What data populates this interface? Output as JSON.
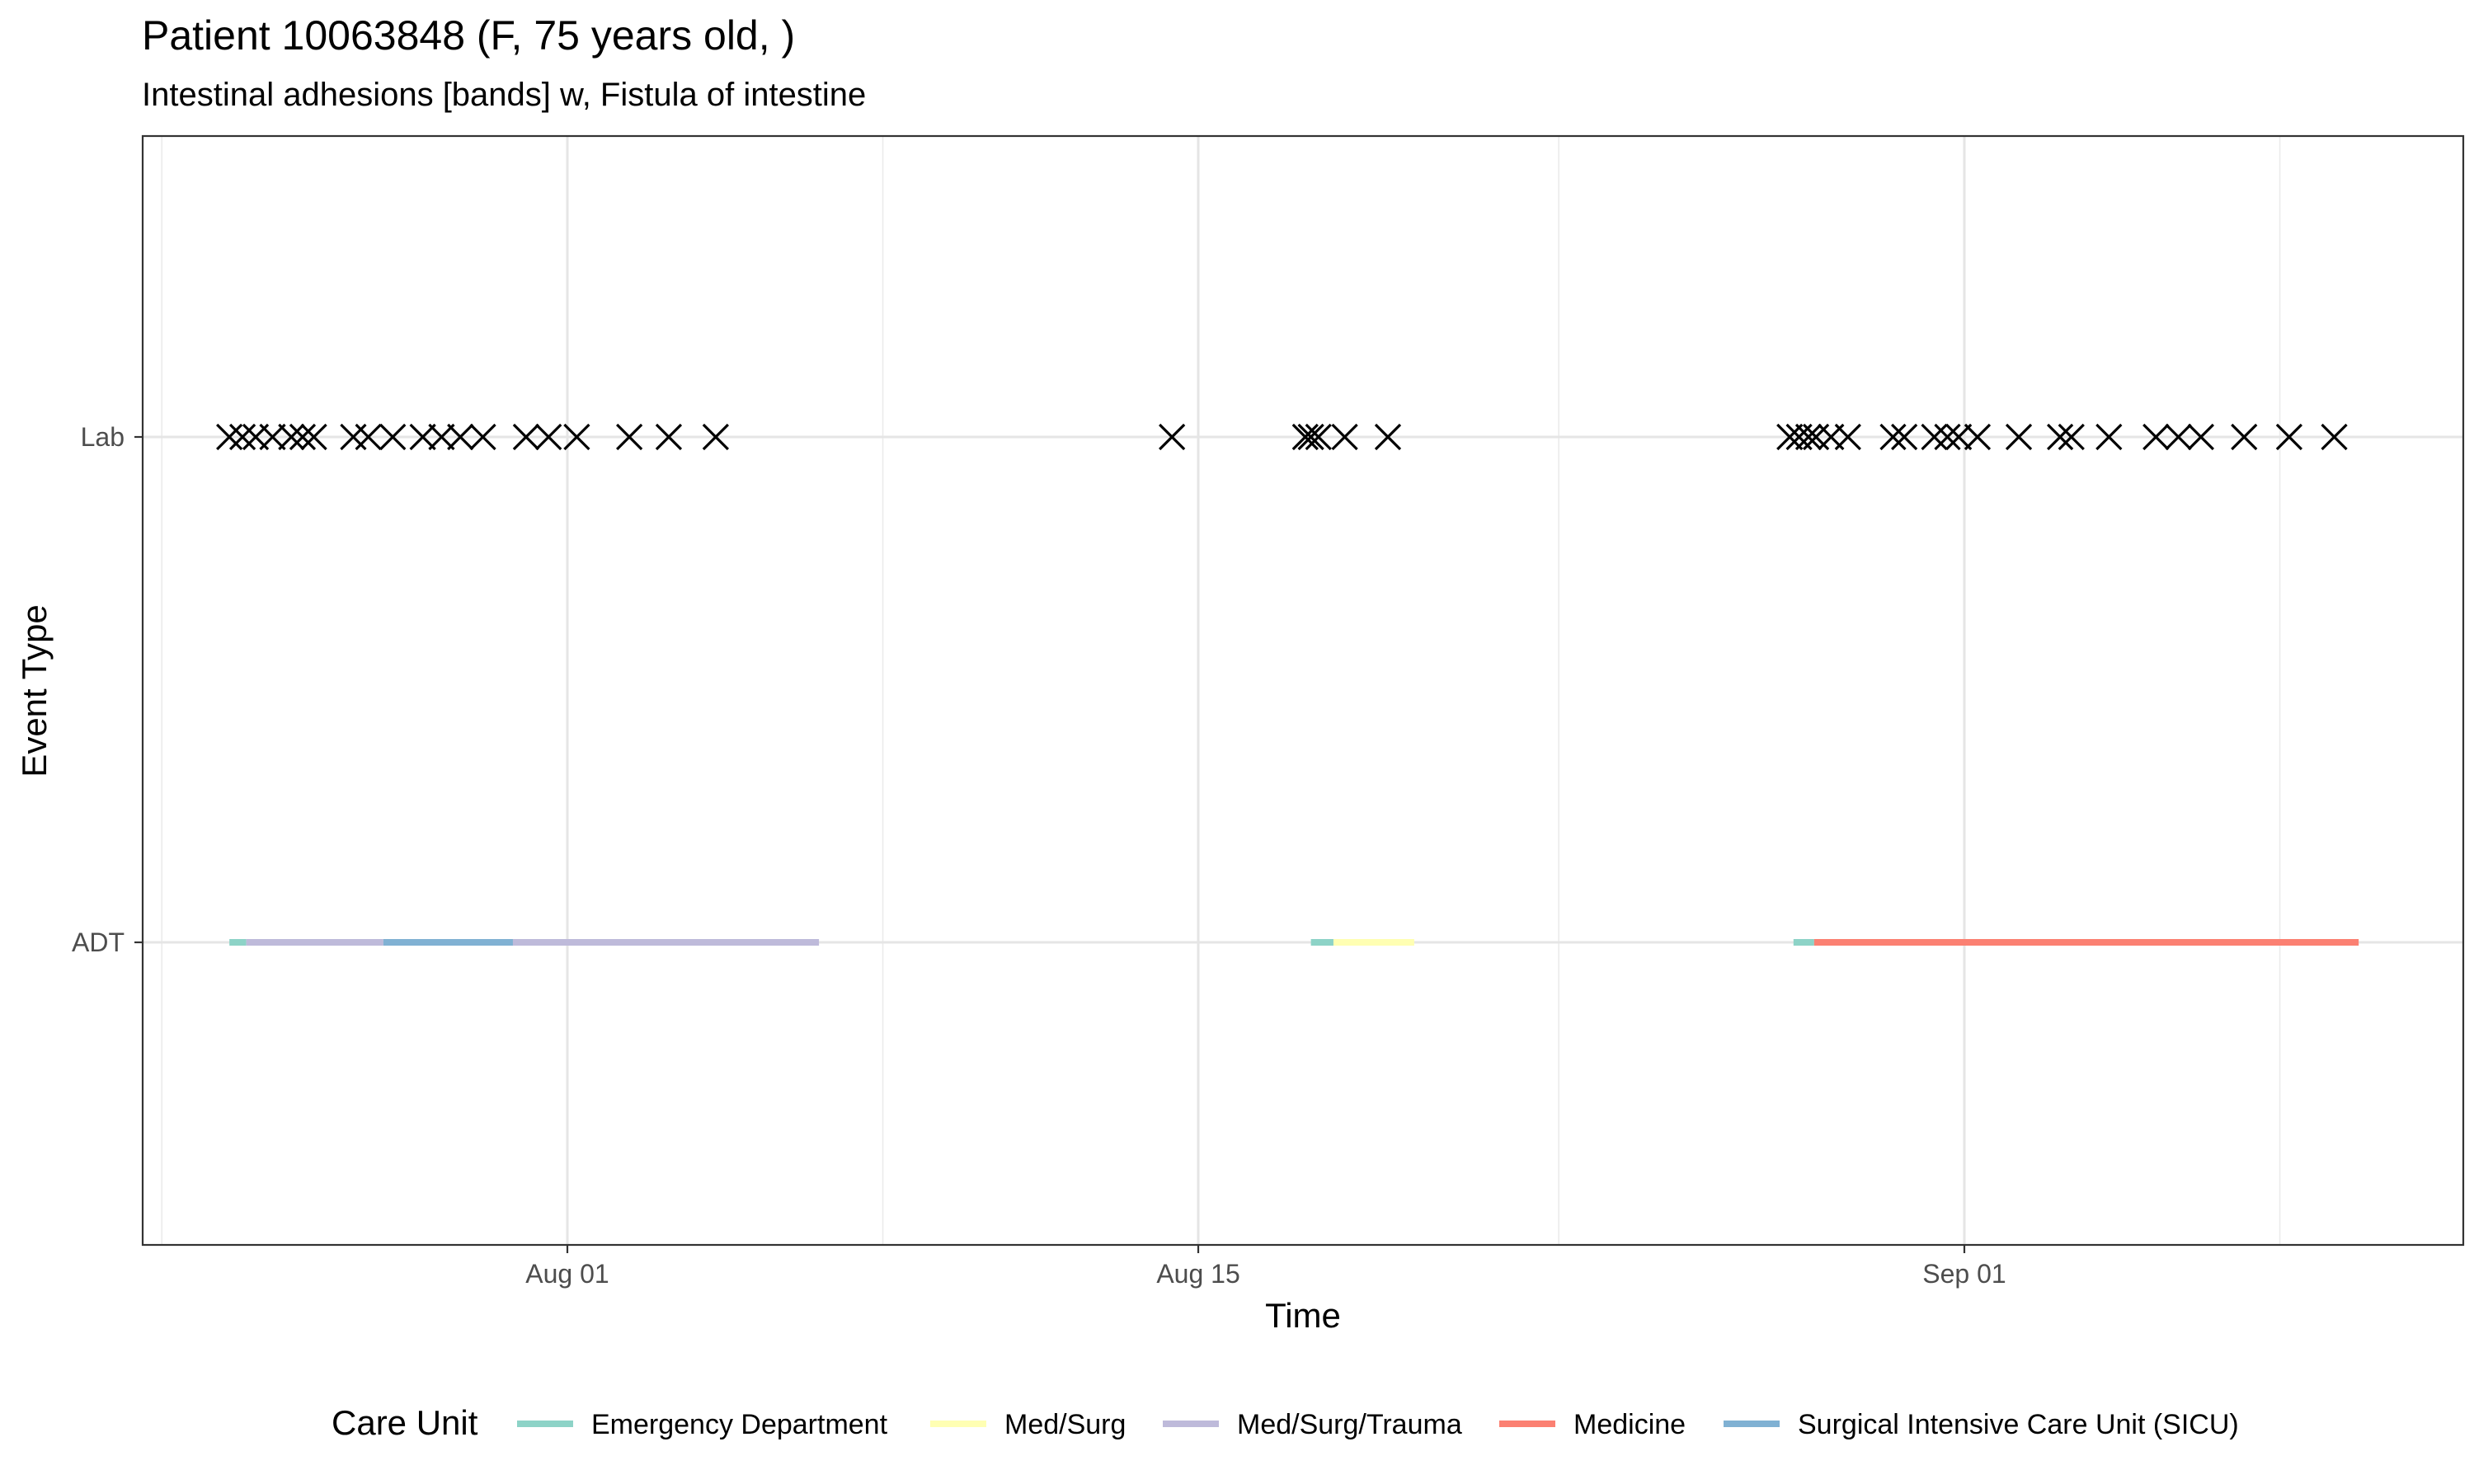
{
  "chart_data": {
    "type": "timeline",
    "title": "Patient 10063848 (F, 75 years old, )",
    "subtitle": "Intestinal adhesions [bands] w, Fistula of intestine",
    "xlabel": "Time",
    "ylabel": "Event Type",
    "x_axis": {
      "type": "date",
      "range": [
        "2024-07-18",
        "2024-09-13"
      ],
      "ticks": [
        {
          "value": "2024-08-01",
          "label": "Aug 01"
        },
        {
          "value": "2024-08-15",
          "label": "Aug 15"
        },
        {
          "value": "2024-09-01",
          "label": "Sep 01"
        }
      ],
      "minor_gridlines": [
        "2024-07-23",
        "2024-08-08",
        "2024-08-23",
        "2024-09-08"
      ]
    },
    "categories": [
      "ADT",
      "Lab"
    ],
    "grid": true,
    "legend": {
      "title": "Care Unit",
      "position": "bottom",
      "items": [
        {
          "label": "Emergency Department",
          "color": "#8DD3C7"
        },
        {
          "label": "Med/Surg",
          "color": "#FFFFB3"
        },
        {
          "label": "Med/Surg/Trauma",
          "color": "#BEBADA"
        },
        {
          "label": "Medicine",
          "color": "#FB8072"
        },
        {
          "label": "Surgical Intensive Care Unit (SICU)",
          "color": "#80B1D3"
        }
      ]
    },
    "adt_segments": [
      {
        "unit": "Emergency Department",
        "start": "2024-07-24T12:00",
        "end": "2024-07-24T21:00"
      },
      {
        "unit": "Med/Surg/Trauma",
        "start": "2024-07-24T21:00",
        "end": "2024-07-27T22:00"
      },
      {
        "unit": "Surgical Intensive Care Unit (SICU)",
        "start": "2024-07-27T22:00",
        "end": "2024-07-30T19:00"
      },
      {
        "unit": "Med/Surg/Trauma",
        "start": "2024-07-30T19:00",
        "end": "2024-08-06T14:00"
      },
      {
        "unit": "Emergency Department",
        "start": "2024-08-17T12:00",
        "end": "2024-08-18T00:00"
      },
      {
        "unit": "Med/Surg",
        "start": "2024-08-18T00:00",
        "end": "2024-08-19T19:00"
      },
      {
        "unit": "Emergency Department",
        "start": "2024-08-28T05:00",
        "end": "2024-08-28T16:00"
      },
      {
        "unit": "Medicine",
        "start": "2024-08-28T16:00",
        "end": "2024-09-09T18:00"
      }
    ],
    "lab_events": [
      "2024-07-24T12:00",
      "2024-07-24T19:00",
      "2024-07-25T02:00",
      "2024-07-25T11:00",
      "2024-07-25T21:00",
      "2024-07-26T03:00",
      "2024-07-26T09:00",
      "2024-07-27T06:00",
      "2024-07-27T14:00",
      "2024-07-28T03:00",
      "2024-07-28T19:00",
      "2024-07-29T05:00",
      "2024-07-29T15:00",
      "2024-07-30T03:00",
      "2024-07-31T02:00",
      "2024-07-31T14:00",
      "2024-08-01T05:00",
      "2024-08-02T09:00",
      "2024-08-03T06:00",
      "2024-08-04T07:00",
      "2024-08-14T10:00",
      "2024-08-17T09:00",
      "2024-08-17T12:00",
      "2024-08-17T16:00",
      "2024-08-18T06:00",
      "2024-08-19T05:00",
      "2024-08-28T03:00",
      "2024-08-28T08:00",
      "2024-08-28T13:00",
      "2024-08-28T17:00",
      "2024-08-29T01:00",
      "2024-08-29T10:00",
      "2024-08-30T10:00",
      "2024-08-30T16:00",
      "2024-08-31T08:00",
      "2024-08-31T15:00",
      "2024-08-31T21:00",
      "2024-09-01T07:00",
      "2024-09-02T05:00",
      "2024-09-03T03:00",
      "2024-09-03T09:00",
      "2024-09-04T05:00",
      "2024-09-05T06:00",
      "2024-09-05T18:00",
      "2024-09-06T06:00",
      "2024-09-07T05:00",
      "2024-09-08T05:00",
      "2024-09-09T05:00"
    ]
  }
}
